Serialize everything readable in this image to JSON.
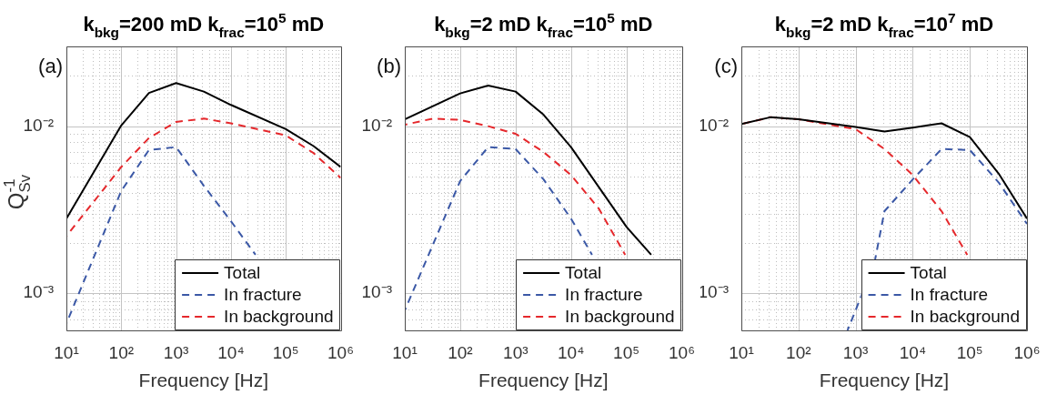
{
  "chart_data": [
    {
      "type": "line",
      "title": "k$_{bkg}$=200 mD k$_{frac}$=10$^{5}$ mD",
      "xlabel": "Frequency [Hz]",
      "ylabel": "Q$^{-1}$$_{Sv}$",
      "annotations": [
        "(a)"
      ],
      "log": "xy",
      "grid": true,
      "legend": "bottom right",
      "marker": "none",
      "xlim": [
        10,
        1000000
      ],
      "ylim": [
        0.0006,
        0.03
      ],
      "xticks": [
        {
          "value": 10,
          "label": "10¹"
        },
        {
          "value": 20,
          "label": null
        },
        {
          "value": 30,
          "label": null
        },
        {
          "value": 40,
          "label": null
        },
        {
          "value": 50,
          "label": null
        },
        {
          "value": 60,
          "label": null
        },
        {
          "value": 70,
          "label": null
        },
        {
          "value": 80,
          "label": null
        },
        {
          "value": 90,
          "label": null
        },
        {
          "value": 100,
          "label": "10²"
        },
        {
          "value": 200,
          "label": null
        },
        {
          "value": 300,
          "label": null
        },
        {
          "value": 400,
          "label": null
        },
        {
          "value": 500,
          "label": null
        },
        {
          "value": 600,
          "label": null
        },
        {
          "value": 700,
          "label": null
        },
        {
          "value": 800,
          "label": null
        },
        {
          "value": 900,
          "label": null
        },
        {
          "value": 1000,
          "label": "10³"
        },
        {
          "value": 2000,
          "label": null
        },
        {
          "value": 3000,
          "label": null
        },
        {
          "value": 4000,
          "label": null
        },
        {
          "value": 5000,
          "label": null
        },
        {
          "value": 6000,
          "label": null
        },
        {
          "value": 7000,
          "label": null
        },
        {
          "value": 8000,
          "label": null
        },
        {
          "value": 9000,
          "label": null
        },
        {
          "value": 10000,
          "label": "10⁴"
        },
        {
          "value": 20000,
          "label": null
        },
        {
          "value": 30000,
          "label": null
        },
        {
          "value": 40000,
          "label": null
        },
        {
          "value": 50000,
          "label": null
        },
        {
          "value": 60000,
          "label": null
        },
        {
          "value": 70000,
          "label": null
        },
        {
          "value": 80000,
          "label": null
        },
        {
          "value": 90000,
          "label": null
        },
        {
          "value": 100000,
          "label": "10⁵"
        },
        {
          "value": 200000,
          "label": null
        },
        {
          "value": 300000,
          "label": null
        },
        {
          "value": 400000,
          "label": null
        },
        {
          "value": 500000,
          "label": null
        },
        {
          "value": 600000,
          "label": null
        },
        {
          "value": 700000,
          "label": null
        },
        {
          "value": 800000,
          "label": null
        },
        {
          "value": 900000,
          "label": null
        },
        {
          "value": 1000000,
          "label": "10⁶"
        }
      ],
      "yticks": [
        {
          "value": 0.0006,
          "label": null
        },
        {
          "value": 0.0007,
          "label": null
        },
        {
          "value": 0.0008,
          "label": null
        },
        {
          "value": 0.0009,
          "label": null
        },
        {
          "value": 0.001,
          "label": "10⁻³"
        },
        {
          "value": 0.002,
          "label": null
        },
        {
          "value": 0.003,
          "label": null
        },
        {
          "value": 0.004,
          "label": null
        },
        {
          "value": 0.005,
          "label": null
        },
        {
          "value": 0.006,
          "label": null
        },
        {
          "value": 0.007,
          "label": null
        },
        {
          "value": 0.008,
          "label": null
        },
        {
          "value": 0.009,
          "label": null
        },
        {
          "value": 0.01,
          "label": "10⁻²"
        },
        {
          "value": 0.02,
          "label": null
        },
        {
          "value": 0.03,
          "label": null
        }
      ],
      "series": [
        {
          "name": "Total",
          "color": "#000000",
          "line_style": "solid",
          "x": [
            10,
            100,
            320,
            1000,
            3200,
            10000,
            100000,
            320000,
            1000000
          ],
          "values": [
            0.0028,
            0.0101,
            0.0158,
            0.0181,
            0.0161,
            0.0134,
            0.0096,
            0.0076,
            0.0057
          ]
        },
        {
          "name": "In fracture",
          "color": "#3b58a6",
          "line_style": "dashed",
          "x": [
            10,
            100,
            320,
            1000,
            3200,
            10000,
            28000
          ],
          "values": [
            0.00066,
            0.0041,
            0.0072,
            0.0075,
            0.0044,
            0.0027,
            0.0017
          ]
        },
        {
          "name": "In background",
          "color": "#e5282c",
          "line_style": "dashed",
          "x": [
            10,
            100,
            320,
            1000,
            3200,
            10000,
            100000,
            320000,
            1000000
          ],
          "values": [
            0.0022,
            0.0057,
            0.0085,
            0.0106,
            0.0111,
            0.0104,
            0.0088,
            0.0069,
            0.0049
          ]
        }
      ]
    },
    {
      "type": "line",
      "title": "k$_{bkg}$=2 mD k$_{frac}$=10$^{5}$ mD",
      "xlabel": "Frequency [Hz]",
      "annotations": [
        "(b)"
      ],
      "log": "xy",
      "grid": true,
      "legend": "bottom right",
      "marker": "none",
      "xlim": [
        10,
        1000000
      ],
      "ylim": [
        0.0006,
        0.03
      ],
      "xticks": [
        {
          "value": 10,
          "label": "10¹"
        },
        {
          "value": 20,
          "label": null
        },
        {
          "value": 30,
          "label": null
        },
        {
          "value": 40,
          "label": null
        },
        {
          "value": 50,
          "label": null
        },
        {
          "value": 60,
          "label": null
        },
        {
          "value": 70,
          "label": null
        },
        {
          "value": 80,
          "label": null
        },
        {
          "value": 90,
          "label": null
        },
        {
          "value": 100,
          "label": "10²"
        },
        {
          "value": 200,
          "label": null
        },
        {
          "value": 300,
          "label": null
        },
        {
          "value": 400,
          "label": null
        },
        {
          "value": 500,
          "label": null
        },
        {
          "value": 600,
          "label": null
        },
        {
          "value": 700,
          "label": null
        },
        {
          "value": 800,
          "label": null
        },
        {
          "value": 900,
          "label": null
        },
        {
          "value": 1000,
          "label": "10³"
        },
        {
          "value": 2000,
          "label": null
        },
        {
          "value": 3000,
          "label": null
        },
        {
          "value": 4000,
          "label": null
        },
        {
          "value": 5000,
          "label": null
        },
        {
          "value": 6000,
          "label": null
        },
        {
          "value": 7000,
          "label": null
        },
        {
          "value": 8000,
          "label": null
        },
        {
          "value": 9000,
          "label": null
        },
        {
          "value": 10000,
          "label": "10⁴"
        },
        {
          "value": 20000,
          "label": null
        },
        {
          "value": 30000,
          "label": null
        },
        {
          "value": 40000,
          "label": null
        },
        {
          "value": 50000,
          "label": null
        },
        {
          "value": 60000,
          "label": null
        },
        {
          "value": 70000,
          "label": null
        },
        {
          "value": 80000,
          "label": null
        },
        {
          "value": 90000,
          "label": null
        },
        {
          "value": 100000,
          "label": "10⁵"
        },
        {
          "value": 200000,
          "label": null
        },
        {
          "value": 300000,
          "label": null
        },
        {
          "value": 400000,
          "label": null
        },
        {
          "value": 500000,
          "label": null
        },
        {
          "value": 600000,
          "label": null
        },
        {
          "value": 700000,
          "label": null
        },
        {
          "value": 800000,
          "label": null
        },
        {
          "value": 900000,
          "label": null
        },
        {
          "value": 1000000,
          "label": "10⁶"
        }
      ],
      "yticks": [
        {
          "value": 0.0006,
          "label": null
        },
        {
          "value": 0.0007,
          "label": null
        },
        {
          "value": 0.0008,
          "label": null
        },
        {
          "value": 0.0009,
          "label": null
        },
        {
          "value": 0.001,
          "label": "10⁻³"
        },
        {
          "value": 0.002,
          "label": null
        },
        {
          "value": 0.003,
          "label": null
        },
        {
          "value": 0.004,
          "label": null
        },
        {
          "value": 0.005,
          "label": null
        },
        {
          "value": 0.006,
          "label": null
        },
        {
          "value": 0.007,
          "label": null
        },
        {
          "value": 0.008,
          "label": null
        },
        {
          "value": 0.009,
          "label": null
        },
        {
          "value": 0.01,
          "label": "10⁻²"
        },
        {
          "value": 0.02,
          "label": null
        },
        {
          "value": 0.03,
          "label": null
        }
      ],
      "series": [
        {
          "name": "Total",
          "color": "#000000",
          "line_style": "solid",
          "x": [
            10,
            100,
            320,
            1000,
            3200,
            10000,
            100000,
            280000
          ],
          "values": [
            0.011,
            0.0157,
            0.0175,
            0.0161,
            0.0117,
            0.0075,
            0.0025,
            0.0017
          ]
        },
        {
          "name": "In fracture",
          "color": "#3b58a6",
          "line_style": "dashed",
          "x": [
            10,
            100,
            320,
            1000,
            3200,
            10000,
            24000
          ],
          "values": [
            0.00079,
            0.0047,
            0.0075,
            0.0073,
            0.0048,
            0.0028,
            0.0017
          ]
        },
        {
          "name": "In background",
          "color": "#e5282c",
          "line_style": "dashed",
          "x": [
            10,
            32,
            100,
            320,
            1000,
            3200,
            10000,
            32000,
            95000
          ],
          "values": [
            0.0102,
            0.0111,
            0.0109,
            0.01,
            0.009,
            0.007,
            0.0051,
            0.0032,
            0.0017
          ]
        }
      ]
    },
    {
      "type": "line",
      "title": "k$_{bkg}$=2 mD k$_{frac}$=10$^{7}$ mD",
      "xlabel": "Frequency [Hz]",
      "annotations": [
        "(c)"
      ],
      "log": "xy",
      "grid": true,
      "legend": "bottom right",
      "marker": "none",
      "xlim": [
        10,
        1000000
      ],
      "ylim": [
        0.0006,
        0.03
      ],
      "xticks": [
        {
          "value": 10,
          "label": "10¹"
        },
        {
          "value": 20,
          "label": null
        },
        {
          "value": 30,
          "label": null
        },
        {
          "value": 40,
          "label": null
        },
        {
          "value": 50,
          "label": null
        },
        {
          "value": 60,
          "label": null
        },
        {
          "value": 70,
          "label": null
        },
        {
          "value": 80,
          "label": null
        },
        {
          "value": 90,
          "label": null
        },
        {
          "value": 100,
          "label": "10²"
        },
        {
          "value": 200,
          "label": null
        },
        {
          "value": 300,
          "label": null
        },
        {
          "value": 400,
          "label": null
        },
        {
          "value": 500,
          "label": null
        },
        {
          "value": 600,
          "label": null
        },
        {
          "value": 700,
          "label": null
        },
        {
          "value": 800,
          "label": null
        },
        {
          "value": 900,
          "label": null
        },
        {
          "value": 1000,
          "label": "10³"
        },
        {
          "value": 2000,
          "label": null
        },
        {
          "value": 3000,
          "label": null
        },
        {
          "value": 4000,
          "label": null
        },
        {
          "value": 5000,
          "label": null
        },
        {
          "value": 6000,
          "label": null
        },
        {
          "value": 7000,
          "label": null
        },
        {
          "value": 8000,
          "label": null
        },
        {
          "value": 9000,
          "label": null
        },
        {
          "value": 10000,
          "label": "10⁴"
        },
        {
          "value": 20000,
          "label": null
        },
        {
          "value": 30000,
          "label": null
        },
        {
          "value": 40000,
          "label": null
        },
        {
          "value": 50000,
          "label": null
        },
        {
          "value": 60000,
          "label": null
        },
        {
          "value": 70000,
          "label": null
        },
        {
          "value": 80000,
          "label": null
        },
        {
          "value": 90000,
          "label": null
        },
        {
          "value": 100000,
          "label": "10⁵"
        },
        {
          "value": 200000,
          "label": null
        },
        {
          "value": 300000,
          "label": null
        },
        {
          "value": 400000,
          "label": null
        },
        {
          "value": 500000,
          "label": null
        },
        {
          "value": 600000,
          "label": null
        },
        {
          "value": 700000,
          "label": null
        },
        {
          "value": 800000,
          "label": null
        },
        {
          "value": 900000,
          "label": null
        },
        {
          "value": 1000000,
          "label": "10⁶"
        }
      ],
      "yticks": [
        {
          "value": 0.0006,
          "label": null
        },
        {
          "value": 0.0007,
          "label": null
        },
        {
          "value": 0.0008,
          "label": null
        },
        {
          "value": 0.0009,
          "label": null
        },
        {
          "value": 0.001,
          "label": "10⁻³"
        },
        {
          "value": 0.002,
          "label": null
        },
        {
          "value": 0.003,
          "label": null
        },
        {
          "value": 0.004,
          "label": null
        },
        {
          "value": 0.005,
          "label": null
        },
        {
          "value": 0.006,
          "label": null
        },
        {
          "value": 0.007,
          "label": null
        },
        {
          "value": 0.008,
          "label": null
        },
        {
          "value": 0.009,
          "label": null
        },
        {
          "value": 0.01,
          "label": "10⁻²"
        },
        {
          "value": 0.02,
          "label": null
        },
        {
          "value": 0.03,
          "label": null
        }
      ],
      "series": [
        {
          "name": "Total",
          "color": "#000000",
          "line_style": "solid",
          "x": [
            10,
            32,
            100,
            1000,
            3200,
            10000,
            32000,
            100000,
            320000,
            1000000
          ],
          "values": [
            0.0103,
            0.0113,
            0.011,
            0.0099,
            0.0093,
            0.0098,
            0.0104,
            0.0086,
            0.0052,
            0.0028
          ]
        },
        {
          "name": "In fracture",
          "color": "#3b58a6",
          "line_style": "dashed",
          "x": [
            720,
            1000,
            2200,
            3200,
            10000,
            32000,
            100000,
            320000,
            1000000
          ],
          "values": [
            0.0006,
            0.00079,
            0.0016,
            0.0031,
            0.0048,
            0.0073,
            0.0072,
            0.0046,
            0.0026
          ]
        },
        {
          "name": "In background",
          "color": "#e5282c",
          "line_style": "dashed",
          "x": [
            10,
            32,
            100,
            1000,
            3200,
            10000,
            32000,
            90000
          ],
          "values": [
            0.0103,
            0.0113,
            0.011,
            0.0096,
            0.0073,
            0.0051,
            0.0031,
            0.0017
          ]
        }
      ]
    }
  ]
}
